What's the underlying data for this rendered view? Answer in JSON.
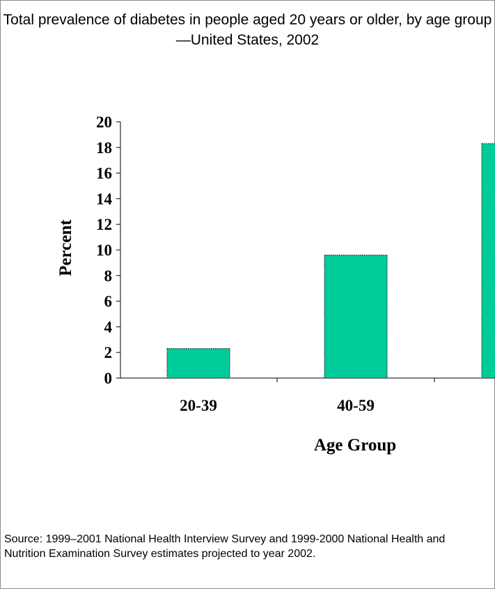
{
  "chart_data": {
    "type": "bar",
    "title": "Total prevalence of diabetes in people aged 20 years or older, by age group—United States, 2002",
    "xlabel": "Age Group",
    "ylabel": "Percent",
    "categories": [
      "20-39",
      "40-59",
      ""
    ],
    "values": [
      2.3,
      9.6,
      18.3
    ],
    "ylim": [
      0,
      20
    ],
    "yticks": [
      "0",
      "2",
      "4",
      "6",
      "8",
      "10",
      "12",
      "14",
      "16",
      "18",
      "20"
    ],
    "bar_color": "#00cc99",
    "grid": false,
    "legend": "none"
  },
  "source": "Source: 1999–2001 National Health Interview Survey and 1999-2000 National Health and Nutrition Examination Survey estimates projected to year 2002."
}
